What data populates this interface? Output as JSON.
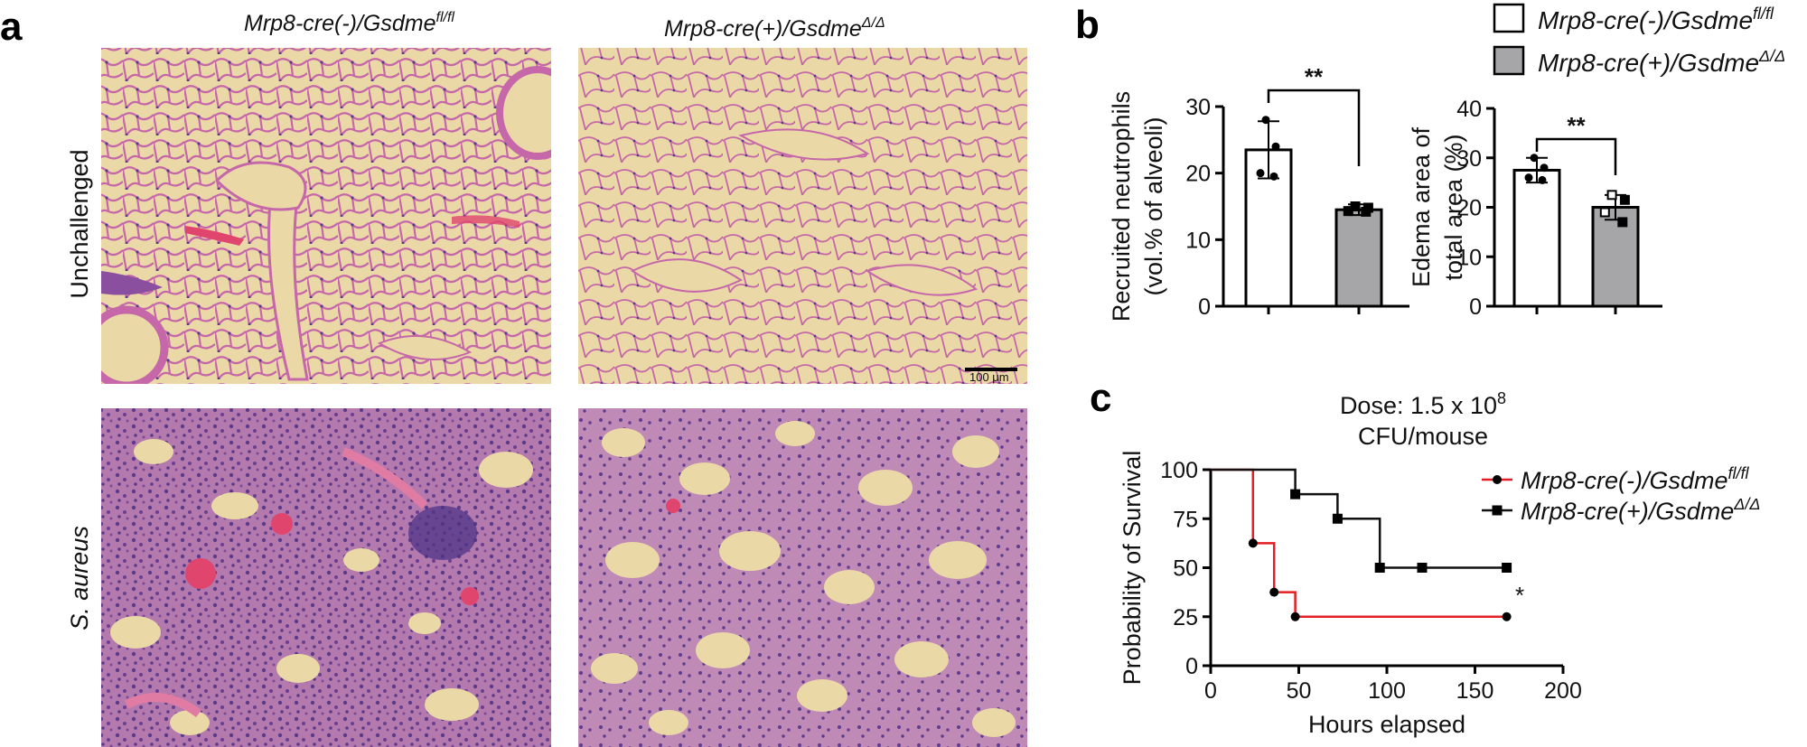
{
  "panels": {
    "a": "a",
    "b": "b",
    "c": "c"
  },
  "panel_a": {
    "col_headers": [
      "Mrp8-cre(-)/Gsdme",
      "Mrp8-cre(+)/Gsdme"
    ],
    "col_sups": [
      "fl/fl",
      "Δ/Δ"
    ],
    "row_labels": [
      "Unchallenged",
      "S. aureus"
    ],
    "scale_bar": "100 μm",
    "colors": {
      "background": "#ead9a7",
      "tissue": "#c567a8",
      "dense": "#8a4f9f",
      "nuclei": "#5b3b8a",
      "blood": "#e0456e"
    }
  },
  "legend_b": {
    "entries": [
      "Mrp8-cre(-)/Gsdme",
      "Mrp8-cre(+)/Gsdme"
    ],
    "sups": [
      "fl/fl",
      "Δ/Δ"
    ]
  },
  "chart_data": [
    {
      "type": "bar",
      "panel": "b",
      "categories": [
        "Mrp8-cre(-)/Gsdme fl/fl",
        "Mrp8-cre(+)/Gsdme Δ/Δ"
      ],
      "values": [
        23.5,
        14.5
      ],
      "error": [
        4.3,
        0.8
      ],
      "points": [
        [
          28,
          24,
          20,
          19.5
        ],
        [
          15,
          14.8,
          14.3,
          14.2
        ]
      ],
      "colors": [
        "#ffffff",
        "#a6a6a8"
      ],
      "ylabel_line1": "Recruited neutrophils",
      "ylabel_line2": "(vol.% of alveoli)",
      "ylim": [
        0,
        30
      ],
      "yticks": [
        "0",
        "10",
        "20",
        "30"
      ],
      "significance": "**"
    },
    {
      "type": "bar",
      "panel": "b",
      "categories": [
        "Mrp8-cre(-)/Gsdme fl/fl",
        "Mrp8-cre(+)/Gsdme Δ/Δ"
      ],
      "values": [
        27.5,
        20
      ],
      "error": [
        2.5,
        2.5
      ],
      "points": [
        [
          30,
          28,
          26,
          25.5
        ],
        [
          22.5,
          21.5,
          19,
          17
        ]
      ],
      "colors": [
        "#ffffff",
        "#a6a6a8"
      ],
      "ylabel_line1": "Edema area of",
      "ylabel_line2": "total area (%)",
      "ylim": [
        0,
        40
      ],
      "yticks": [
        "0",
        "10",
        "20",
        "30",
        "40"
      ],
      "significance": "**"
    },
    {
      "type": "line",
      "panel": "c",
      "title_line1": "Dose: 1.5 x 10",
      "title_sup": "8",
      "title_line2": "CFU/mouse",
      "xlabel": "Hours elapsed",
      "ylabel": "Probability of Survival",
      "xlim": [
        0,
        200
      ],
      "ylim": [
        0,
        100
      ],
      "xticks": [
        "0",
        "50",
        "100",
        "150",
        "200"
      ],
      "yticks": [
        "0",
        "25",
        "50",
        "75",
        "100"
      ],
      "series": [
        {
          "name": "Mrp8-cre(-)/Gsdme",
          "sup": "fl/fl",
          "color": "#e31e24",
          "steps": [
            [
              0,
              100
            ],
            [
              24,
              62.5
            ],
            [
              36,
              37.5
            ],
            [
              48,
              25
            ],
            [
              168,
              25
            ]
          ],
          "markers": [
            [
              24,
              62.5
            ],
            [
              36,
              37.5
            ],
            [
              48,
              25
            ],
            [
              168,
              25
            ]
          ],
          "marker": "circle"
        },
        {
          "name": "Mrp8-cre(+)/Gsdme",
          "sup": "Δ/Δ",
          "color": "#111111",
          "steps": [
            [
              0,
              100
            ],
            [
              48,
              87.5
            ],
            [
              72,
              75
            ],
            [
              96,
              50
            ],
            [
              168,
              50
            ]
          ],
          "markers": [
            [
              48,
              87.5
            ],
            [
              72,
              75
            ],
            [
              96,
              50
            ],
            [
              120,
              50
            ],
            [
              168,
              50
            ]
          ],
          "marker": "square"
        }
      ],
      "significance": "*"
    }
  ]
}
